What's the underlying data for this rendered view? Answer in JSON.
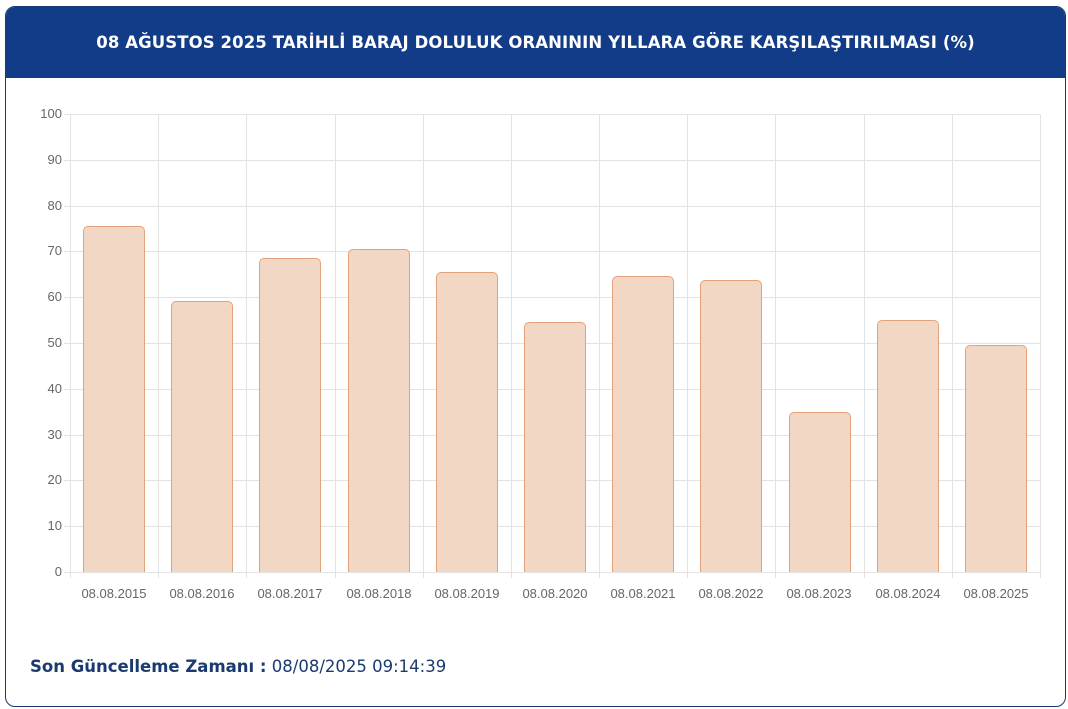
{
  "header": {
    "title": "08 AĞUSTOS 2025 TARİHLİ BARAJ DOLULUK ORANININ YILLARA GÖRE KARŞILAŞTIRILMASI (%)"
  },
  "footer": {
    "label": "Son Güncelleme Zamanı :",
    "value": " 08/08/2025 09:14:39"
  },
  "colors": {
    "header_bg": "#123c87",
    "bar_fill": "#f2d7c5",
    "bar_border": "#e2a27c",
    "footer_text": "#1a3a70"
  },
  "chart_data": {
    "type": "bar",
    "title": "08 AĞUSTOS 2025 TARİHLİ BARAJ DOLULUK ORANININ YILLARA GÖRE KARŞILAŞTIRILMASI (%)",
    "xlabel": "",
    "ylabel": "",
    "ylim": [
      0,
      100
    ],
    "yticks": [
      0,
      10,
      20,
      30,
      40,
      50,
      60,
      70,
      80,
      90,
      100
    ],
    "grid": true,
    "legend": null,
    "categories": [
      "08.08.2015",
      "08.08.2016",
      "08.08.2017",
      "08.08.2018",
      "08.08.2019",
      "08.08.2020",
      "08.08.2021",
      "08.08.2022",
      "08.08.2023",
      "08.08.2024",
      "08.08.2025"
    ],
    "values": [
      75.5,
      59.2,
      68.5,
      70.5,
      65.4,
      54.5,
      64.6,
      63.7,
      35.0,
      55.0,
      49.6
    ]
  }
}
